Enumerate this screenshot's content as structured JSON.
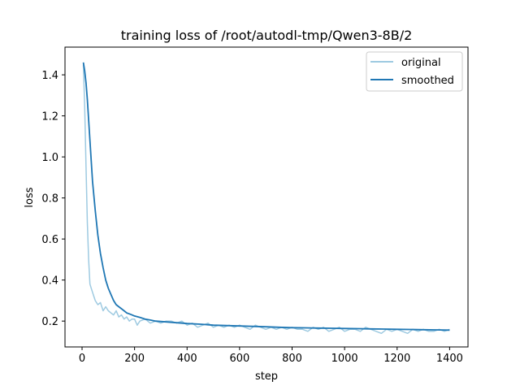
{
  "chart_data": {
    "type": "line",
    "title": "training loss of /root/autodl-tmp/Qwen3-8B/2",
    "xlabel": "step",
    "ylabel": "loss",
    "xlim": [
      -65,
      1470
    ],
    "ylim": [
      0.074,
      1.535
    ],
    "xticks": [
      0,
      200,
      400,
      600,
      800,
      1000,
      1200,
      1400
    ],
    "yticks": [
      0.2,
      0.4,
      0.6,
      0.8,
      1.0,
      1.2,
      1.4
    ],
    "xtick_labels": [
      "0",
      "200",
      "400",
      "600",
      "800",
      "1000",
      "1200",
      "1400"
    ],
    "ytick_labels": [
      "0.2",
      "0.4",
      "0.6",
      "0.8",
      "1.0",
      "1.2",
      "1.4"
    ],
    "grid": false,
    "legend_position": "top-right",
    "series": [
      {
        "name": "original",
        "color": "#9ecae1",
        "x": [
          5,
          10,
          15,
          20,
          25,
          30,
          35,
          40,
          50,
          60,
          70,
          80,
          90,
          100,
          110,
          120,
          130,
          140,
          150,
          160,
          170,
          180,
          190,
          200,
          210,
          220,
          240,
          260,
          280,
          300,
          320,
          340,
          360,
          380,
          400,
          420,
          440,
          460,
          480,
          500,
          520,
          540,
          560,
          580,
          600,
          620,
          640,
          660,
          680,
          700,
          720,
          740,
          760,
          780,
          800,
          820,
          840,
          860,
          880,
          900,
          920,
          940,
          960,
          980,
          1000,
          1020,
          1040,
          1060,
          1080,
          1100,
          1120,
          1140,
          1160,
          1180,
          1200,
          1220,
          1240,
          1260,
          1280,
          1300,
          1320,
          1340,
          1360,
          1380,
          1400
        ],
        "values": [
          1.45,
          1.25,
          0.95,
          0.68,
          0.5,
          0.38,
          0.36,
          0.34,
          0.3,
          0.28,
          0.29,
          0.25,
          0.27,
          0.25,
          0.24,
          0.23,
          0.25,
          0.22,
          0.23,
          0.21,
          0.22,
          0.2,
          0.21,
          0.21,
          0.18,
          0.2,
          0.21,
          0.19,
          0.2,
          0.19,
          0.2,
          0.2,
          0.19,
          0.2,
          0.18,
          0.19,
          0.17,
          0.18,
          0.19,
          0.17,
          0.18,
          0.17,
          0.18,
          0.17,
          0.18,
          0.17,
          0.16,
          0.18,
          0.17,
          0.16,
          0.17,
          0.16,
          0.17,
          0.16,
          0.17,
          0.16,
          0.16,
          0.15,
          0.17,
          0.16,
          0.17,
          0.15,
          0.16,
          0.17,
          0.15,
          0.16,
          0.16,
          0.15,
          0.17,
          0.16,
          0.15,
          0.14,
          0.16,
          0.15,
          0.16,
          0.15,
          0.14,
          0.16,
          0.15,
          0.16,
          0.15,
          0.15,
          0.16,
          0.15,
          0.16
        ]
      },
      {
        "name": "smoothed",
        "color": "#1f77b4",
        "x": [
          5,
          10,
          15,
          20,
          25,
          30,
          35,
          40,
          50,
          60,
          70,
          80,
          90,
          100,
          110,
          120,
          130,
          140,
          150,
          160,
          170,
          180,
          190,
          200,
          220,
          240,
          260,
          280,
          300,
          320,
          340,
          360,
          380,
          400,
          450,
          500,
          550,
          600,
          650,
          700,
          750,
          800,
          850,
          900,
          950,
          1000,
          1050,
          1100,
          1150,
          1200,
          1250,
          1300,
          1350,
          1400
        ],
        "values": [
          1.46,
          1.42,
          1.36,
          1.28,
          1.18,
          1.08,
          0.98,
          0.88,
          0.74,
          0.62,
          0.53,
          0.46,
          0.4,
          0.36,
          0.33,
          0.3,
          0.28,
          0.27,
          0.26,
          0.25,
          0.24,
          0.235,
          0.23,
          0.225,
          0.218,
          0.21,
          0.205,
          0.2,
          0.198,
          0.196,
          0.194,
          0.192,
          0.19,
          0.188,
          0.185,
          0.18,
          0.178,
          0.176,
          0.174,
          0.172,
          0.17,
          0.168,
          0.167,
          0.166,
          0.165,
          0.164,
          0.163,
          0.162,
          0.161,
          0.16,
          0.159,
          0.158,
          0.157,
          0.156
        ]
      }
    ]
  }
}
